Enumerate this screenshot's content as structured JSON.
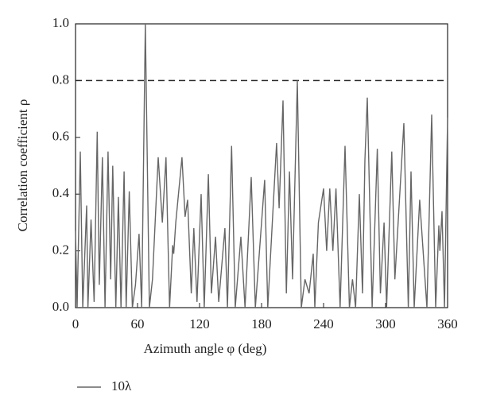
{
  "chart_data": {
    "type": "line",
    "xlabel": "Azimuth angle φ (deg)",
    "ylabel": "Correlation coefficient ρ",
    "xlim": [
      0,
      360
    ],
    "xticks": [
      0,
      60,
      120,
      180,
      240,
      300,
      360
    ],
    "ylim": [
      0,
      1
    ],
    "yticks": [
      {
        "value": 0,
        "label": "0.0"
      },
      0.2,
      0.4,
      0.6,
      0.8,
      {
        "value": 1,
        "label": "1.0"
      }
    ],
    "threshold": 0.8,
    "legend": "bottom-left",
    "series": [
      {
        "name": "10λ",
        "color": "#666666",
        "x": [
          0,
          1.5,
          4.6,
          7,
          10.8,
          12,
          15,
          18,
          21,
          23,
          26,
          28.5,
          31.5,
          34,
          36,
          39,
          41.5,
          44,
          47,
          49,
          52,
          55,
          58,
          61.5,
          64,
          67.5,
          71.5,
          74.5,
          80,
          84,
          87.5,
          91,
          94,
          95,
          97,
          103,
          106,
          108.5,
          112,
          114.5,
          117.5,
          121.5,
          124.5,
          128.5,
          131.5,
          135.5,
          138.5,
          144.5,
          147,
          151,
          154.5,
          160,
          164,
          170,
          174,
          183,
          186,
          194.5,
          197,
          200.8,
          204,
          207,
          210,
          214.6,
          218.5,
          222,
          226,
          230,
          231.5,
          235,
          240,
          243,
          246,
          249,
          252,
          256,
          260.8,
          265,
          268,
          271,
          274.6,
          277.7,
          280,
          282.3,
          287,
          292,
          295,
          298.5,
          301,
          306,
          309,
          317.7,
          322,
          324.6,
          327.7,
          333,
          340,
          344.6,
          348.5,
          351.5,
          352.5,
          354.6,
          357,
          360
        ],
        "values": [
          0.27,
          0,
          0.55,
          0,
          0.36,
          0,
          0.31,
          0.02,
          0.62,
          0.08,
          0.53,
          0,
          0.55,
          0.1,
          0.5,
          0,
          0.39,
          0,
          0.48,
          0,
          0.41,
          0,
          0.08,
          0.26,
          0,
          1.0,
          0,
          0.1,
          0.53,
          0.3,
          0.53,
          0,
          0.22,
          0.19,
          0.3,
          0.53,
          0.32,
          0.38,
          0.05,
          0.28,
          0.02,
          0.4,
          0,
          0.47,
          0.05,
          0.25,
          0.02,
          0.28,
          0,
          0.57,
          0,
          0.25,
          0,
          0.46,
          0,
          0.45,
          0,
          0.58,
          0.35,
          0.73,
          0.05,
          0.48,
          0.1,
          0.8,
          0,
          0.1,
          0.05,
          0.19,
          0,
          0.3,
          0.42,
          0.2,
          0.42,
          0.2,
          0.42,
          0,
          0.57,
          0,
          0.1,
          0,
          0.4,
          0.05,
          0.52,
          0.74,
          0,
          0.56,
          0.05,
          0.3,
          0,
          0.55,
          0.1,
          0.65,
          0,
          0.48,
          0,
          0.38,
          0,
          0.68,
          0,
          0.29,
          0.2,
          0.34,
          0,
          0.67
        ]
      }
    ]
  }
}
